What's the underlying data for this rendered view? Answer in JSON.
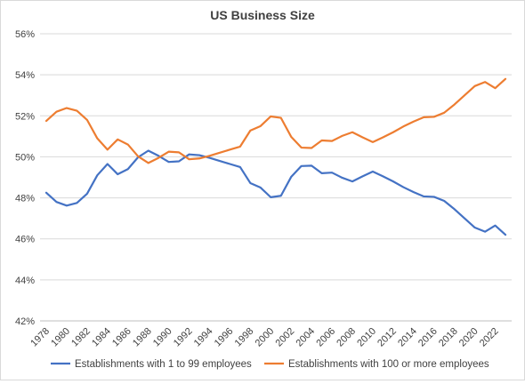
{
  "chart_data": {
    "type": "line",
    "title": "US Business Size",
    "xlabel": "",
    "ylabel": "",
    "ylim": [
      42,
      56
    ],
    "y_ticks": [
      42,
      44,
      46,
      48,
      50,
      52,
      54,
      56
    ],
    "y_tick_suffix": "%",
    "grid": true,
    "legend_position": "bottom",
    "x": [
      1978,
      1979,
      1980,
      1981,
      1982,
      1983,
      1984,
      1985,
      1986,
      1987,
      1988,
      1989,
      1990,
      1991,
      1992,
      1993,
      1994,
      1995,
      1996,
      1997,
      1998,
      1999,
      2000,
      2001,
      2002,
      2003,
      2004,
      2005,
      2006,
      2007,
      2008,
      2009,
      2010,
      2011,
      2012,
      2013,
      2014,
      2015,
      2016,
      2017,
      2018,
      2019,
      2020,
      2021,
      2022,
      2023
    ],
    "x_tick_labels": [
      "1978",
      "1980",
      "1982",
      "1984",
      "1986",
      "1988",
      "1990",
      "1992",
      "1994",
      "1996",
      "1998",
      "2000",
      "2002",
      "2004",
      "2006",
      "2008",
      "2010",
      "2012",
      "2014",
      "2016",
      "2018",
      "2020",
      "2022"
    ],
    "series": [
      {
        "name": "Establishments with 1 to 99 employees",
        "color": "#4472c4",
        "values": [
          48.25,
          47.8,
          47.62,
          47.75,
          48.2,
          49.1,
          49.65,
          49.15,
          49.4,
          49.98,
          50.3,
          50.05,
          49.75,
          49.78,
          50.12,
          50.08,
          49.95,
          49.8,
          49.65,
          49.5,
          48.72,
          48.5,
          48.03,
          48.1,
          49.02,
          49.55,
          49.57,
          49.2,
          49.23,
          48.98,
          48.8,
          49.05,
          49.28,
          49.05,
          48.8,
          48.52,
          48.28,
          48.07,
          48.05,
          47.85,
          47.45,
          47.0,
          46.55,
          46.35,
          46.65,
          46.2
        ]
      },
      {
        "name": "Establishments with 100 or more employees",
        "color": "#ed7d31",
        "values": [
          51.75,
          52.2,
          52.38,
          52.25,
          51.8,
          50.9,
          50.35,
          50.85,
          50.6,
          50.02,
          49.7,
          49.95,
          50.25,
          50.22,
          49.88,
          49.92,
          50.05,
          50.2,
          50.35,
          50.5,
          51.28,
          51.5,
          51.97,
          51.9,
          50.98,
          50.45,
          50.43,
          50.8,
          50.77,
          51.02,
          51.2,
          50.95,
          50.72,
          50.95,
          51.2,
          51.48,
          51.72,
          51.93,
          51.95,
          52.15,
          52.55,
          53.0,
          53.45,
          53.65,
          53.35,
          53.8
        ]
      }
    ]
  }
}
